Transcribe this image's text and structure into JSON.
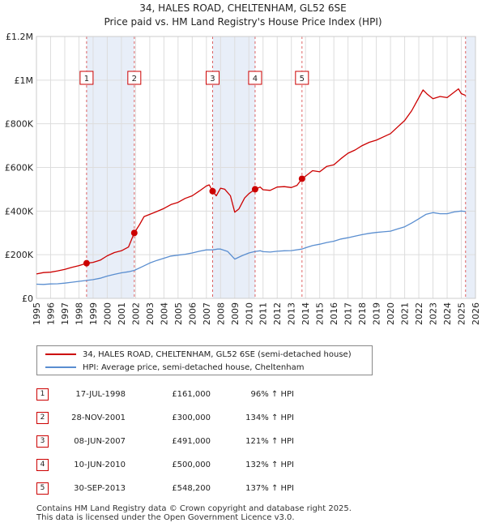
{
  "title_line1": "34, HALES ROAD, CHELTENHAM, GL52 6SE",
  "title_line2": "Price paid vs. HM Land Registry's House Price Index (HPI)",
  "chart_data": {
    "type": "line",
    "xlim": [
      1995,
      2026
    ],
    "ylim": [
      0,
      1200000
    ],
    "x_ticks": [
      1995,
      1996,
      1997,
      1998,
      1999,
      2000,
      2001,
      2002,
      2003,
      2004,
      2005,
      2006,
      2007,
      2008,
      2009,
      2010,
      2011,
      2012,
      2013,
      2014,
      2015,
      2016,
      2017,
      2018,
      2019,
      2020,
      2021,
      2022,
      2023,
      2024,
      2025,
      2026
    ],
    "y_ticks": [
      {
        "value": 0,
        "label": "£0"
      },
      {
        "value": 200000,
        "label": "£200K"
      },
      {
        "value": 400000,
        "label": "£400K"
      },
      {
        "value": 600000,
        "label": "£600K"
      },
      {
        "value": 800000,
        "label": "£800K"
      },
      {
        "value": 1000000,
        "label": "£1M"
      },
      {
        "value": 1200000,
        "label": "£1.2M"
      }
    ],
    "grid": true,
    "series": [
      {
        "name": "34, HALES ROAD, CHELTENHAM, GL52 6SE (semi-detached house)",
        "color": "#cc0000",
        "points": [
          [
            1995.0,
            112000
          ],
          [
            1995.5,
            118000
          ],
          [
            1996.0,
            120000
          ],
          [
            1996.5,
            126000
          ],
          [
            1997.0,
            133000
          ],
          [
            1997.5,
            142000
          ],
          [
            1998.0,
            150000
          ],
          [
            1998.54,
            161000
          ],
          [
            1999.0,
            165000
          ],
          [
            1999.5,
            175000
          ],
          [
            2000.0,
            195000
          ],
          [
            2000.5,
            210000
          ],
          [
            2001.0,
            218000
          ],
          [
            2001.5,
            235000
          ],
          [
            2001.91,
            300000
          ],
          [
            2002.3,
            340000
          ],
          [
            2002.6,
            375000
          ],
          [
            2003.0,
            385000
          ],
          [
            2003.5,
            398000
          ],
          [
            2004.0,
            412000
          ],
          [
            2004.5,
            430000
          ],
          [
            2005.0,
            440000
          ],
          [
            2005.5,
            458000
          ],
          [
            2006.0,
            470000
          ],
          [
            2006.5,
            492000
          ],
          [
            2007.0,
            515000
          ],
          [
            2007.2,
            520000
          ],
          [
            2007.44,
            491000
          ],
          [
            2007.7,
            470000
          ],
          [
            2008.0,
            505000
          ],
          [
            2008.3,
            500000
          ],
          [
            2008.7,
            470000
          ],
          [
            2009.0,
            395000
          ],
          [
            2009.3,
            410000
          ],
          [
            2009.7,
            460000
          ],
          [
            2010.0,
            480000
          ],
          [
            2010.44,
            500000
          ],
          [
            2010.8,
            510000
          ],
          [
            2011.0,
            498000
          ],
          [
            2011.5,
            495000
          ],
          [
            2012.0,
            510000
          ],
          [
            2012.5,
            512000
          ],
          [
            2013.0,
            508000
          ],
          [
            2013.4,
            518000
          ],
          [
            2013.75,
            548200
          ],
          [
            2014.0,
            560000
          ],
          [
            2014.5,
            585000
          ],
          [
            2015.0,
            580000
          ],
          [
            2015.5,
            605000
          ],
          [
            2016.0,
            612000
          ],
          [
            2016.5,
            640000
          ],
          [
            2017.0,
            665000
          ],
          [
            2017.5,
            680000
          ],
          [
            2018.0,
            700000
          ],
          [
            2018.5,
            715000
          ],
          [
            2019.0,
            725000
          ],
          [
            2019.5,
            740000
          ],
          [
            2020.0,
            755000
          ],
          [
            2020.5,
            785000
          ],
          [
            2021.0,
            815000
          ],
          [
            2021.5,
            860000
          ],
          [
            2022.0,
            920000
          ],
          [
            2022.3,
            955000
          ],
          [
            2022.6,
            935000
          ],
          [
            2023.0,
            915000
          ],
          [
            2023.5,
            925000
          ],
          [
            2024.0,
            920000
          ],
          [
            2024.5,
            945000
          ],
          [
            2024.8,
            960000
          ],
          [
            2025.0,
            938000
          ],
          [
            2025.3,
            930000
          ]
        ]
      },
      {
        "name": "HPI: Average price, semi-detached house, Cheltenham",
        "color": "#5a8ed0",
        "points": [
          [
            1995.0,
            65000
          ],
          [
            1995.5,
            64000
          ],
          [
            1996.0,
            66000
          ],
          [
            1996.5,
            67000
          ],
          [
            1997.0,
            70000
          ],
          [
            1997.5,
            74000
          ],
          [
            1998.0,
            78000
          ],
          [
            1998.54,
            82000
          ],
          [
            1999.0,
            86000
          ],
          [
            1999.5,
            92000
          ],
          [
            2000.0,
            102000
          ],
          [
            2000.5,
            110000
          ],
          [
            2001.0,
            117000
          ],
          [
            2001.5,
            122000
          ],
          [
            2001.91,
            128000
          ],
          [
            2002.5,
            146000
          ],
          [
            2003.0,
            162000
          ],
          [
            2003.5,
            174000
          ],
          [
            2004.0,
            184000
          ],
          [
            2004.5,
            194000
          ],
          [
            2005.0,
            198000
          ],
          [
            2005.5,
            202000
          ],
          [
            2006.0,
            208000
          ],
          [
            2006.5,
            216000
          ],
          [
            2007.0,
            222000
          ],
          [
            2007.44,
            222000
          ],
          [
            2007.8,
            226000
          ],
          [
            2008.0,
            226000
          ],
          [
            2008.5,
            215000
          ],
          [
            2009.0,
            180000
          ],
          [
            2009.5,
            195000
          ],
          [
            2010.0,
            208000
          ],
          [
            2010.44,
            215000
          ],
          [
            2010.8,
            218000
          ],
          [
            2011.0,
            214000
          ],
          [
            2011.5,
            212000
          ],
          [
            2012.0,
            216000
          ],
          [
            2012.5,
            218000
          ],
          [
            2013.0,
            219000
          ],
          [
            2013.75,
            226000
          ],
          [
            2014.0,
            232000
          ],
          [
            2014.5,
            242000
          ],
          [
            2015.0,
            248000
          ],
          [
            2015.5,
            256000
          ],
          [
            2016.0,
            262000
          ],
          [
            2016.5,
            272000
          ],
          [
            2017.0,
            278000
          ],
          [
            2017.5,
            285000
          ],
          [
            2018.0,
            292000
          ],
          [
            2018.5,
            298000
          ],
          [
            2019.0,
            302000
          ],
          [
            2019.5,
            305000
          ],
          [
            2020.0,
            308000
          ],
          [
            2020.5,
            318000
          ],
          [
            2021.0,
            328000
          ],
          [
            2021.5,
            345000
          ],
          [
            2022.0,
            365000
          ],
          [
            2022.5,
            385000
          ],
          [
            2023.0,
            393000
          ],
          [
            2023.5,
            388000
          ],
          [
            2024.0,
            388000
          ],
          [
            2024.5,
            396000
          ],
          [
            2025.0,
            400000
          ],
          [
            2025.3,
            398000
          ]
        ]
      }
    ],
    "sales": [
      {
        "n": "1",
        "x": 1998.54,
        "value": 161000
      },
      {
        "n": "2",
        "x": 2001.91,
        "value": 300000
      },
      {
        "n": "3",
        "x": 2007.44,
        "value": 491000
      },
      {
        "n": "4",
        "x": 2010.44,
        "value": 500000
      },
      {
        "n": "5",
        "x": 2013.75,
        "value": 548200
      }
    ],
    "shaded_ranges": [
      [
        1998.54,
        2001.91
      ],
      [
        2007.44,
        2010.44
      ],
      [
        2025.3,
        2026
      ]
    ]
  },
  "legend": {
    "red_label": "34, HALES ROAD, CHELTENHAM, GL52 6SE (semi-detached house)",
    "blue_label": "HPI: Average price, semi-detached house, Cheltenham"
  },
  "sales_table": [
    {
      "n": "1",
      "date": "17-JUL-1998",
      "price": "£161,000",
      "hpi": "96% ↑ HPI"
    },
    {
      "n": "2",
      "date": "28-NOV-2001",
      "price": "£300,000",
      "hpi": "134% ↑ HPI"
    },
    {
      "n": "3",
      "date": "08-JUN-2007",
      "price": "£491,000",
      "hpi": "121% ↑ HPI"
    },
    {
      "n": "4",
      "date": "10-JUN-2010",
      "price": "£500,000",
      "hpi": "132% ↑ HPI"
    },
    {
      "n": "5",
      "date": "30-SEP-2013",
      "price": "£548,200",
      "hpi": "137% ↑ HPI"
    }
  ],
  "footer": {
    "line1": "Contains HM Land Registry data © Crown copyright and database right 2025.",
    "line2": "This data is licensed under the Open Government Licence v3.0."
  }
}
